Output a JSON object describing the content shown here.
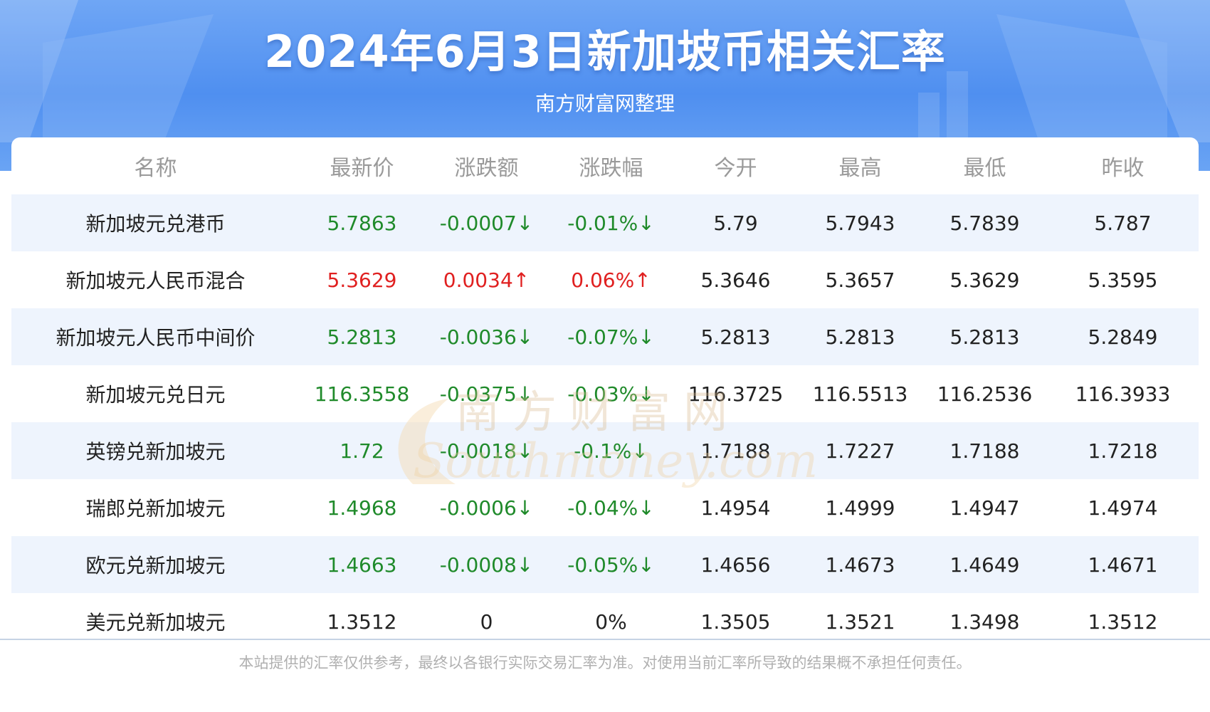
{
  "header": {
    "title": "2024年6月3日新加坡币相关汇率",
    "subtitle": "南方财富网整理"
  },
  "table": {
    "columns": [
      "名称",
      "最新价",
      "涨跌额",
      "涨跌幅",
      "今开",
      "最高",
      "最低",
      "昨收"
    ],
    "rows": [
      {
        "name": "新加坡元兑港币",
        "latest": "5.7863",
        "change": "-0.0007↓",
        "pct": "-0.01%↓",
        "open": "5.79",
        "high": "5.7943",
        "low": "5.7839",
        "prev": "5.787",
        "trend": "down"
      },
      {
        "name": "新加坡元人民币混合",
        "latest": "5.3629",
        "change": "0.0034↑",
        "pct": "0.06%↑",
        "open": "5.3646",
        "high": "5.3657",
        "low": "5.3629",
        "prev": "5.3595",
        "trend": "up"
      },
      {
        "name": "新加坡元人民币中间价",
        "latest": "5.2813",
        "change": "-0.0036↓",
        "pct": "-0.07%↓",
        "open": "5.2813",
        "high": "5.2813",
        "low": "5.2813",
        "prev": "5.2849",
        "trend": "down"
      },
      {
        "name": "新加坡元兑日元",
        "latest": "116.3558",
        "change": "-0.0375↓",
        "pct": "-0.03%↓",
        "open": "116.3725",
        "high": "116.5513",
        "low": "116.2536",
        "prev": "116.3933",
        "trend": "down"
      },
      {
        "name": "英镑兑新加坡元",
        "latest": "1.72",
        "change": "-0.0018↓",
        "pct": "-0.1%↓",
        "open": "1.7188",
        "high": "1.7227",
        "low": "1.7188",
        "prev": "1.7218",
        "trend": "down"
      },
      {
        "name": "瑞郎兑新加坡元",
        "latest": "1.4968",
        "change": "-0.0006↓",
        "pct": "-0.04%↓",
        "open": "1.4954",
        "high": "1.4999",
        "low": "1.4947",
        "prev": "1.4974",
        "trend": "down"
      },
      {
        "name": "欧元兑新加坡元",
        "latest": "1.4663",
        "change": "-0.0008↓",
        "pct": "-0.05%↓",
        "open": "1.4656",
        "high": "1.4673",
        "low": "1.4649",
        "prev": "1.4671",
        "trend": "down"
      },
      {
        "name": "美元兑新加坡元",
        "latest": "1.3512",
        "change": "0",
        "pct": "0%",
        "open": "1.3505",
        "high": "1.3521",
        "low": "1.3498",
        "prev": "1.3512",
        "trend": "flat"
      }
    ]
  },
  "watermark": {
    "cn": "南方财富网",
    "en": "Southmoney.com"
  },
  "footer": {
    "disclaimer": "本站提供的汇率仅供参考，最终以各银行实际交易汇率为准。对使用当前汇率所导致的结果概不承担任何责任。"
  },
  "colors": {
    "up": "#e02020",
    "down": "#1f8a2a",
    "flat": "#222222",
    "header_blue": "#4f8ff0"
  }
}
